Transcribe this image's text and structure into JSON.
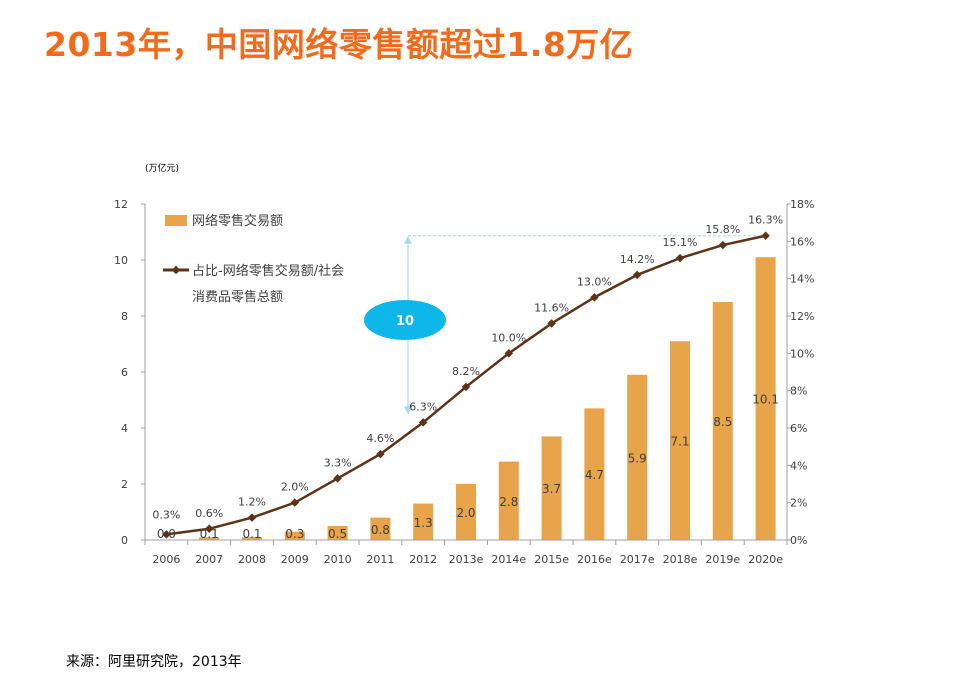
{
  "title": "2013年，中国网络零售额超过1.8万亿",
  "source": "来源：阿里研究院，2013年",
  "callout": {
    "label": "10"
  },
  "colors": {
    "title": "#f26b1d",
    "bar": "#e8a44a",
    "line": "#5c3317",
    "axis": "#a0a0a0",
    "callout": "#0db7ea",
    "bracket": "#a8dbe6"
  },
  "chart_data": {
    "type": "bar+line",
    "unit_label": "(万亿元)",
    "categories": [
      "2006",
      "2007",
      "2008",
      "2009",
      "2010",
      "2011",
      "2012",
      "2013e",
      "2014e",
      "2015e",
      "2016e",
      "2017e",
      "2018e",
      "2019e",
      "2020e"
    ],
    "series": [
      {
        "name": "网络零售交易额",
        "type": "bar",
        "axis": "left",
        "values": [
          0.0,
          0.1,
          0.1,
          0.3,
          0.5,
          0.8,
          1.3,
          2.0,
          2.8,
          3.7,
          4.7,
          5.9,
          7.1,
          8.5,
          10.1
        ],
        "labels": [
          "0.0",
          "0.1",
          "0.1",
          "0.3",
          "0.5",
          "0.8",
          "1.3",
          "2.0",
          "2.8",
          "3.7",
          "4.7",
          "5.9",
          "7.1",
          "8.5",
          "10.1"
        ]
      },
      {
        "name": "占比-网络零售交易额/社会消费品零售总额",
        "type": "line",
        "axis": "right",
        "values": [
          0.3,
          0.6,
          1.2,
          2.0,
          3.3,
          4.6,
          6.3,
          8.2,
          10.0,
          11.6,
          13.0,
          14.2,
          15.1,
          15.8,
          16.3
        ],
        "labels": [
          "0.3%",
          "0.6%",
          "1.2%",
          "2.0%",
          "3.3%",
          "4.6%",
          "6.3%",
          "8.2%",
          "10.0%",
          "11.6%",
          "13.0%",
          "14.2%",
          "15.1%",
          "15.8%",
          "16.3%"
        ]
      }
    ],
    "legend": {
      "bar_label": "网络零售交易额",
      "line_label_1": "占比-网络零售交易额/社会",
      "line_label_2": "消费品零售总额"
    },
    "y_left": {
      "min": 0,
      "max": 12,
      "ticks": [
        "0",
        "2",
        "4",
        "6",
        "8",
        "10",
        "12"
      ]
    },
    "y_right": {
      "min": 0,
      "max": 18,
      "ticks": [
        "0%",
        "2%",
        "4%",
        "6%",
        "8%",
        "10%",
        "12%",
        "14%",
        "16%",
        "18%"
      ]
    }
  }
}
